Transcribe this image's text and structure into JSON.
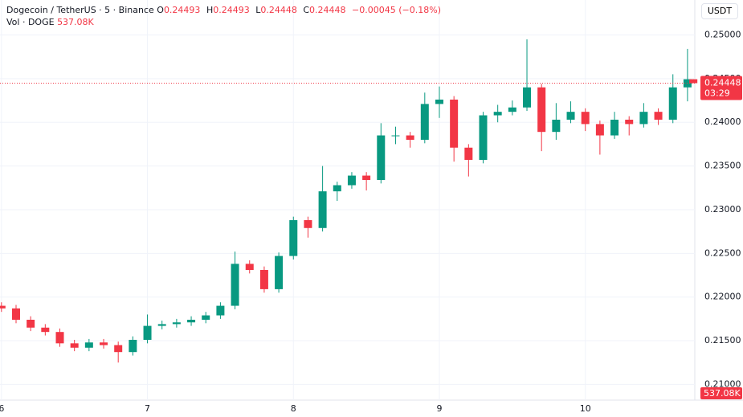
{
  "chart_data": {
    "type": "candlestick",
    "title": "Dogecoin / TetherUS · 5 · Binance",
    "ohlc_labels": [
      "O",
      "H",
      "L",
      "C"
    ],
    "change": "−0.00045 (−0.18%)",
    "volume_title": "Vol · DOGE",
    "volume": "537.08K",
    "quote_currency": "USDT",
    "countdown": "03:29",
    "up_color": "#089981",
    "down_color": "#f23645",
    "grid": true,
    "x": [
      6.0,
      6.1,
      6.2,
      6.3,
      6.4,
      6.5,
      6.6,
      6.7,
      6.8,
      6.9,
      7.0,
      7.1,
      7.2,
      7.3,
      7.4,
      7.5,
      7.6,
      7.7,
      7.8,
      7.9,
      8.0,
      8.1,
      8.2,
      8.3,
      8.4,
      8.5,
      8.6,
      8.7,
      8.8,
      8.9,
      9.0,
      9.1,
      9.2,
      9.3,
      9.4,
      9.5,
      9.6,
      9.7,
      9.8,
      9.9,
      10.0,
      10.1,
      10.2,
      10.3,
      10.4,
      10.5,
      10.6,
      10.7,
      10.74
    ],
    "open": [
      0.219,
      0.2187,
      0.2174,
      0.2165,
      0.216,
      0.2147,
      0.2142,
      0.2148,
      0.2145,
      0.2137,
      0.2151,
      0.2167,
      0.2169,
      0.2171,
      0.2174,
      0.2179,
      0.219,
      0.2238,
      0.2231,
      0.2209,
      0.2247,
      0.2288,
      0.2279,
      0.2321,
      0.2328,
      0.2339,
      0.2334,
      0.2385,
      0.2385,
      0.238,
      0.2421,
      0.2426,
      0.2371,
      0.2357,
      0.2408,
      0.2412,
      0.2417,
      0.244,
      0.2389,
      0.2403,
      0.2412,
      0.2398,
      0.2385,
      0.2403,
      0.2398,
      0.2412,
      0.2403,
      0.244,
      0.24493
    ],
    "high": [
      0.2194,
      0.2191,
      0.2178,
      0.2169,
      0.2164,
      0.2151,
      0.2152,
      0.2152,
      0.2149,
      0.2155,
      0.218,
      0.2173,
      0.2175,
      0.2178,
      0.2183,
      0.2194,
      0.2252,
      0.2242,
      0.2235,
      0.2251,
      0.2292,
      0.2292,
      0.235,
      0.2332,
      0.2343,
      0.2343,
      0.2399,
      0.2395,
      0.2389,
      0.2434,
      0.2441,
      0.243,
      0.2375,
      0.2412,
      0.242,
      0.2425,
      0.2495,
      0.2444,
      0.2422,
      0.2424,
      0.2416,
      0.2402,
      0.2412,
      0.2407,
      0.2422,
      0.2416,
      0.2455,
      0.2484,
      0.24493
    ],
    "low": [
      0.2183,
      0.217,
      0.2161,
      0.2156,
      0.2143,
      0.2138,
      0.2138,
      0.2141,
      0.2125,
      0.2133,
      0.2147,
      0.2163,
      0.2165,
      0.2167,
      0.217,
      0.2175,
      0.2186,
      0.2227,
      0.2205,
      0.2205,
      0.2243,
      0.2268,
      0.2275,
      0.231,
      0.2324,
      0.2322,
      0.233,
      0.2375,
      0.2371,
      0.2376,
      0.2405,
      0.2355,
      0.2338,
      0.2353,
      0.24,
      0.2408,
      0.2413,
      0.2367,
      0.238,
      0.2399,
      0.239,
      0.2363,
      0.2381,
      0.2385,
      0.2394,
      0.2397,
      0.2399,
      0.2424,
      0.24448
    ],
    "close": [
      0.2187,
      0.2174,
      0.2165,
      0.216,
      0.2147,
      0.2142,
      0.2148,
      0.2145,
      0.2137,
      0.2151,
      0.2167,
      0.2169,
      0.2171,
      0.2174,
      0.2179,
      0.219,
      0.2238,
      0.2231,
      0.2209,
      0.2247,
      0.2288,
      0.2279,
      0.2321,
      0.2328,
      0.2339,
      0.2334,
      0.2385,
      0.2385,
      0.238,
      0.2421,
      0.2426,
      0.2371,
      0.2357,
      0.2408,
      0.2412,
      0.2417,
      0.244,
      0.2389,
      0.2403,
      0.2412,
      0.2398,
      0.2385,
      0.2403,
      0.2398,
      0.2412,
      0.2403,
      0.244,
      0.24493,
      0.24448
    ],
    "xlim": [
      5.99,
      10.75
    ],
    "ylim": [
      0.2082,
      0.254
    ],
    "xticks": [
      6,
      7,
      8,
      9,
      10
    ],
    "yticks": [
      {
        "value": 0.21,
        "label": "0.21000"
      },
      {
        "value": 0.215,
        "label": "0.21500"
      },
      {
        "value": 0.22,
        "label": "0.22000"
      },
      {
        "value": 0.225,
        "label": "0.22500"
      },
      {
        "value": 0.23,
        "label": "0.23000"
      },
      {
        "value": 0.235,
        "label": "0.23500"
      },
      {
        "value": 0.24,
        "label": "0.24000"
      },
      {
        "value": 0.245,
        "label": "0.24500"
      },
      {
        "value": 0.25,
        "label": "0.25000"
      }
    ]
  }
}
